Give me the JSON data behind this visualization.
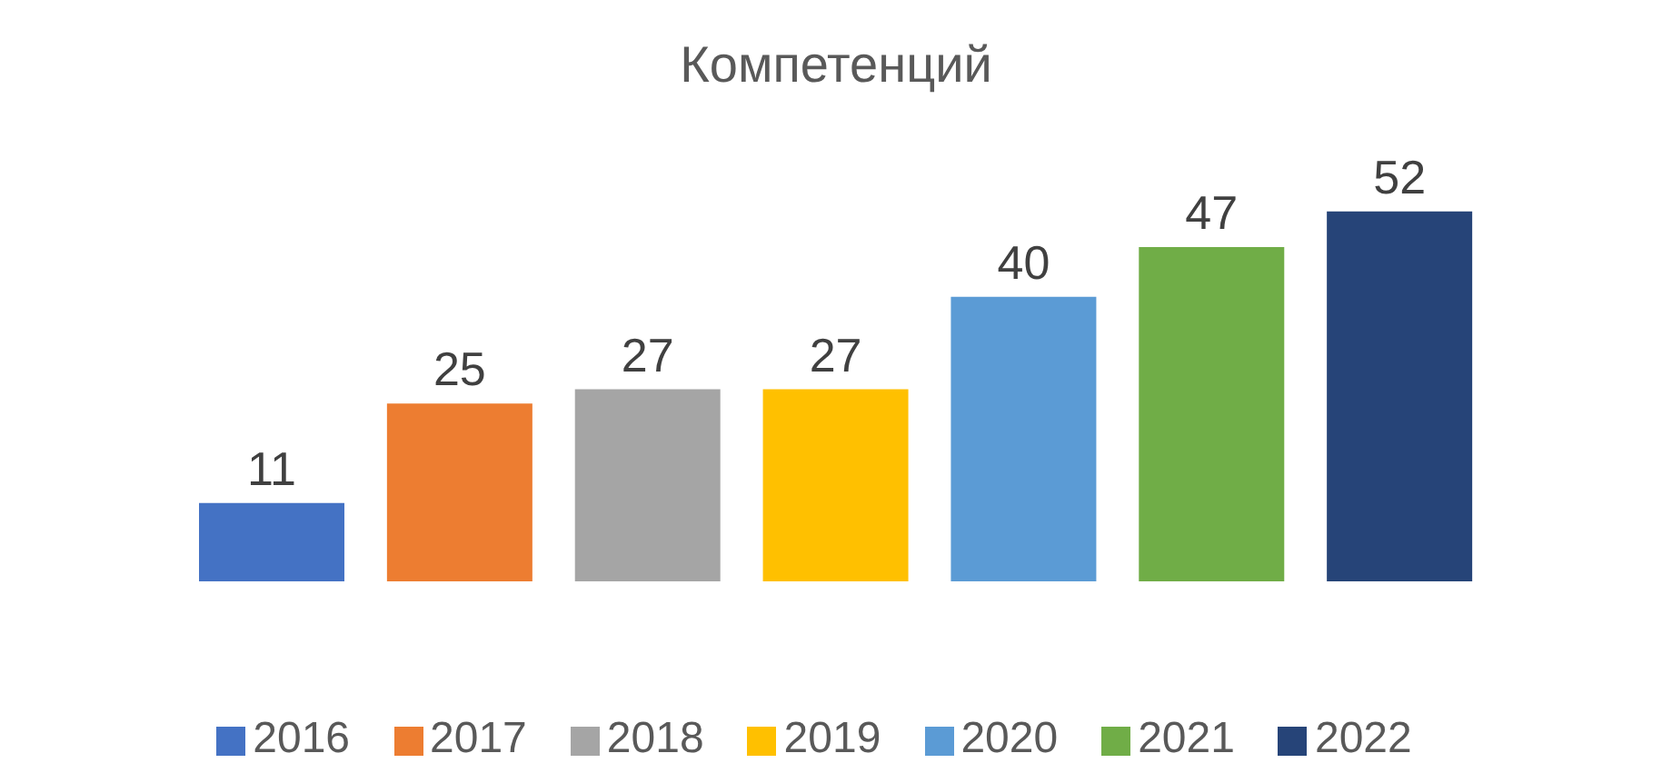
{
  "chart_data": {
    "type": "bar",
    "title": "Компетенций",
    "categories": [
      null,
      null,
      null,
      null,
      null,
      null,
      null
    ],
    "stacked": true,
    "series": [
      {
        "name": "2016",
        "color": "#4472c4",
        "values": [
          11,
          null,
          null,
          null,
          null,
          null,
          null
        ]
      },
      {
        "name": "2017",
        "color": "#ed7d31",
        "values": [
          null,
          25,
          null,
          null,
          null,
          null,
          null
        ]
      },
      {
        "name": "2018",
        "color": "#a5a5a5",
        "values": [
          null,
          null,
          27,
          null,
          null,
          null,
          null
        ]
      },
      {
        "name": "2019",
        "color": "#ffc000",
        "values": [
          null,
          null,
          null,
          27,
          null,
          null,
          null
        ]
      },
      {
        "name": "2020",
        "color": "#5b9bd5",
        "values": [
          null,
          null,
          null,
          null,
          40,
          null,
          null
        ]
      },
      {
        "name": "2021",
        "color": "#70ad47",
        "values": [
          null,
          null,
          null,
          null,
          null,
          47,
          null
        ]
      },
      {
        "name": "2022",
        "color": "#264478",
        "values": [
          null,
          null,
          null,
          null,
          null,
          null,
          52
        ]
      }
    ],
    "data_labels": true,
    "legend": "bottom"
  }
}
